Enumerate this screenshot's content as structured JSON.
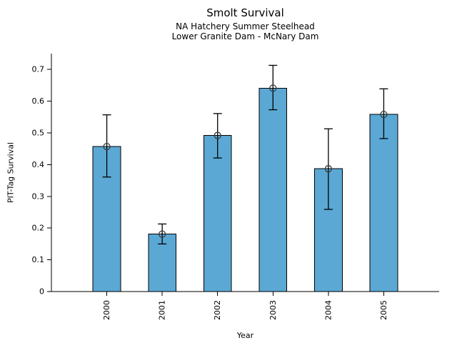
{
  "figure": {
    "title": "Smolt Survival",
    "subtitle_line1": "NA Hatchery Summer Steelhead",
    "subtitle_line2": "Lower Granite Dam - McNary Dam"
  },
  "chart_data": {
    "type": "bar",
    "title": "Smolt Survival",
    "subtitles": [
      "NA Hatchery Summer Steelhead",
      "Lower Granite Dam - McNary Dam"
    ],
    "categories": [
      "2000",
      "2001",
      "2002",
      "2003",
      "2004",
      "2005"
    ],
    "values": [
      0.457,
      0.181,
      0.492,
      0.641,
      0.387,
      0.558
    ],
    "error_low": [
      0.361,
      0.15,
      0.421,
      0.573,
      0.259,
      0.482
    ],
    "error_high": [
      0.557,
      0.213,
      0.561,
      0.713,
      0.513,
      0.639
    ],
    "xlabel": "Year",
    "ylabel": "PIT-Tag Survival",
    "ylim": [
      0,
      0.75
    ],
    "yticks": [
      0,
      0.1,
      0.2,
      0.3,
      0.4,
      0.5,
      0.6,
      0.7
    ],
    "ytick_labels": [
      "0",
      "0.1",
      "0.2",
      "0.3",
      "0.4",
      "0.5",
      "0.6",
      "0.7"
    ],
    "xtick_label_rotation_deg": 90,
    "marker": "open-circle",
    "error_caps": true,
    "grid": false,
    "legend": null,
    "colors": {
      "bar_fill": "#5BA8D4",
      "bar_edge": "#000000",
      "error_bar": "#000000",
      "marker_edge": "#3a3a3a",
      "axis": "#000000",
      "text": "#000000",
      "background": "#ffffff"
    }
  }
}
